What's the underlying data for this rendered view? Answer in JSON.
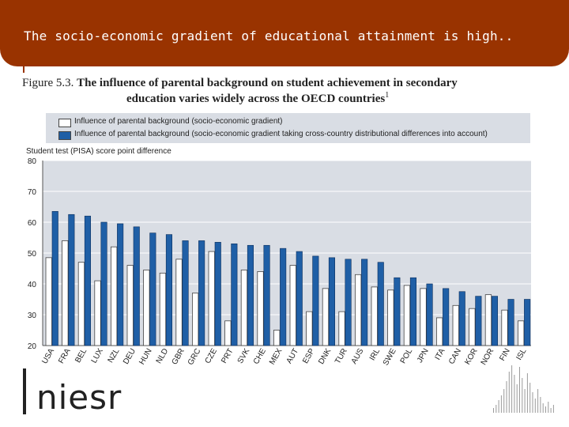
{
  "header": {
    "title": "The socio-economic gradient of educational attainment is high.."
  },
  "figure": {
    "number": "Figure 5.3.",
    "title": "The influence of parental background on student achievement in secondary education varies widely across the OECD countries",
    "title_line1": "The influence of parental background on student achievement in secondary",
    "title_line2": "education varies widely across the OECD countries",
    "footnote_marker": "1"
  },
  "logo": {
    "text": "niesr"
  },
  "colors": {
    "header": "#993300",
    "series_blue": "#1f5fa6",
    "series_white": "#ffffff",
    "legend_bg": "#d9dde4",
    "plot_bg": "#d9dde4"
  },
  "chart_data": {
    "type": "bar",
    "ylabel": "Student test (PISA) score point difference",
    "ylim": [
      20,
      80
    ],
    "yticks": [
      20,
      30,
      40,
      50,
      60,
      70,
      80
    ],
    "grid": true,
    "legend_placement": "top",
    "categories": [
      "USA",
      "FRA",
      "BEL",
      "LUX",
      "NZL",
      "DEU",
      "HUN",
      "NLD",
      "GBR",
      "GRC",
      "CZE",
      "PRT",
      "SVK",
      "CHE",
      "MEX",
      "AUT",
      "ESP",
      "DNK",
      "TUR",
      "AUS",
      "IRL",
      "SWE",
      "POL",
      "JPN",
      "ITA",
      "CAN",
      "KOR",
      "NOR",
      "FIN",
      "ISL"
    ],
    "series": [
      {
        "name": "Influence of parental background (socio-economic gradient)",
        "values": [
          48.5,
          54,
          47,
          41,
          52,
          46,
          44.5,
          43.5,
          48,
          37,
          50.5,
          28,
          44.5,
          44,
          25,
          46,
          31,
          38.5,
          31,
          43,
          39,
          38,
          39.5,
          38.5,
          29,
          33,
          32,
          36.5,
          31.5,
          28
        ]
      },
      {
        "name": "Influence of parental background (socio-economic gradient taking cross-country distributional differences into account)",
        "values": [
          63.5,
          62.5,
          62,
          60,
          59.5,
          58.5,
          56.5,
          56,
          54,
          54,
          53.5,
          53,
          52.5,
          52.5,
          51.5,
          50.5,
          49,
          48.5,
          48,
          48,
          47,
          42,
          42,
          40,
          38.5,
          37.5,
          36,
          36,
          35,
          35
        ]
      }
    ]
  }
}
